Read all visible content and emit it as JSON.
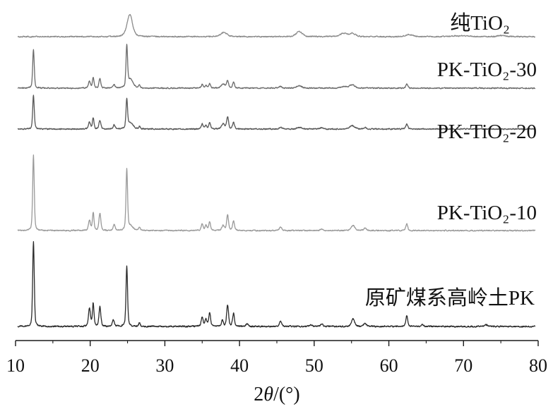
{
  "chart_data": {
    "type": "line",
    "xlabel": "2θ/(°)",
    "ylabel": "",
    "xlim": [
      10,
      80
    ],
    "xticks": [
      10,
      20,
      30,
      40,
      50,
      60,
      70,
      80
    ],
    "grid": false,
    "stacked": true,
    "peak_format": [
      "two_theta_deg",
      "relative_intensity",
      "fwhm_deg"
    ],
    "series": [
      {
        "name": "纯TiO₂",
        "color": "#8a8a8a",
        "peaks": [
          [
            25.3,
            26,
            0.85
          ],
          [
            37.9,
            5,
            1.0
          ],
          [
            48.0,
            6,
            1.0
          ],
          [
            53.9,
            4,
            1.0
          ],
          [
            55.1,
            4,
            1.0
          ],
          [
            62.7,
            2.5,
            1.2
          ],
          [
            68.9,
            1,
            1.2
          ],
          [
            70.3,
            1,
            1.2
          ],
          [
            75.1,
            1.5,
            1.2
          ]
        ]
      },
      {
        "name": "PK-TiO₂-30",
        "color": "#6a6a6a",
        "peaks": [
          [
            12.4,
            45,
            0.25
          ],
          [
            19.9,
            8,
            0.3
          ],
          [
            20.4,
            12,
            0.25
          ],
          [
            21.3,
            11,
            0.3
          ],
          [
            23.2,
            4,
            0.3
          ],
          [
            24.9,
            48,
            0.25
          ],
          [
            25.4,
            10,
            0.8
          ],
          [
            26.6,
            3,
            0.25
          ],
          [
            35.0,
            4,
            0.3
          ],
          [
            35.5,
            3,
            0.3
          ],
          [
            36.0,
            5,
            0.3
          ],
          [
            37.8,
            5,
            0.6
          ],
          [
            38.4,
            9,
            0.3
          ],
          [
            39.2,
            7,
            0.3
          ],
          [
            45.5,
            2,
            0.4
          ],
          [
            48.0,
            3,
            0.8
          ],
          [
            54.0,
            2,
            0.8
          ],
          [
            55.1,
            4,
            0.8
          ],
          [
            62.4,
            5,
            0.3
          ]
        ]
      },
      {
        "name": "PK-TiO₂-20",
        "color": "#555555",
        "peaks": [
          [
            12.4,
            40,
            0.25
          ],
          [
            19.9,
            8,
            0.3
          ],
          [
            20.4,
            13,
            0.25
          ],
          [
            21.3,
            10,
            0.3
          ],
          [
            23.2,
            5,
            0.3
          ],
          [
            24.9,
            34,
            0.25
          ],
          [
            25.4,
            7,
            0.8
          ],
          [
            26.6,
            3,
            0.25
          ],
          [
            35.0,
            6,
            0.3
          ],
          [
            35.5,
            4,
            0.3
          ],
          [
            36.0,
            7,
            0.3
          ],
          [
            37.8,
            6,
            0.5
          ],
          [
            38.4,
            14,
            0.3
          ],
          [
            39.2,
            8,
            0.3
          ],
          [
            45.5,
            2,
            0.4
          ],
          [
            48.0,
            2,
            0.8
          ],
          [
            51.0,
            1.5,
            0.4
          ],
          [
            55.1,
            4,
            0.8
          ],
          [
            56.8,
            2,
            0.4
          ],
          [
            62.4,
            6,
            0.3
          ]
        ]
      },
      {
        "name": "PK-TiO₂-10",
        "color": "#999999",
        "peaks": [
          [
            12.4,
            88,
            0.25
          ],
          [
            19.9,
            12,
            0.3
          ],
          [
            20.4,
            21,
            0.25
          ],
          [
            21.3,
            20,
            0.3
          ],
          [
            23.2,
            7,
            0.3
          ],
          [
            24.9,
            71,
            0.25
          ],
          [
            25.4,
            5,
            0.8
          ],
          [
            26.6,
            4,
            0.25
          ],
          [
            35.0,
            8,
            0.3
          ],
          [
            35.5,
            6,
            0.3
          ],
          [
            36.0,
            10,
            0.3
          ],
          [
            37.8,
            6,
            0.4
          ],
          [
            38.4,
            18,
            0.3
          ],
          [
            39.2,
            11,
            0.3
          ],
          [
            45.5,
            4,
            0.4
          ],
          [
            51.0,
            2,
            0.4
          ],
          [
            55.2,
            6,
            0.6
          ],
          [
            56.8,
            3,
            0.4
          ],
          [
            62.4,
            8,
            0.3
          ]
        ]
      },
      {
        "name": "原矿煤系高岭土PK",
        "color": "#2a2a2a",
        "peaks": [
          [
            12.4,
            100,
            0.25
          ],
          [
            19.9,
            21,
            0.3
          ],
          [
            20.4,
            27,
            0.25
          ],
          [
            21.3,
            23,
            0.3
          ],
          [
            23.1,
            8,
            0.3
          ],
          [
            24.9,
            71,
            0.25
          ],
          [
            26.6,
            4,
            0.25
          ],
          [
            35.0,
            11,
            0.3
          ],
          [
            35.5,
            8,
            0.3
          ],
          [
            36.0,
            16,
            0.3
          ],
          [
            37.7,
            7,
            0.3
          ],
          [
            38.4,
            25,
            0.3
          ],
          [
            39.2,
            15,
            0.3
          ],
          [
            41.0,
            3,
            0.4
          ],
          [
            45.5,
            6,
            0.4
          ],
          [
            49.5,
            2,
            0.4
          ],
          [
            51.0,
            3,
            0.4
          ],
          [
            55.2,
            9,
            0.5
          ],
          [
            56.8,
            4,
            0.4
          ],
          [
            62.4,
            13,
            0.3
          ],
          [
            64.5,
            2,
            0.4
          ],
          [
            73.0,
            2,
            0.5
          ]
        ]
      }
    ]
  }
}
